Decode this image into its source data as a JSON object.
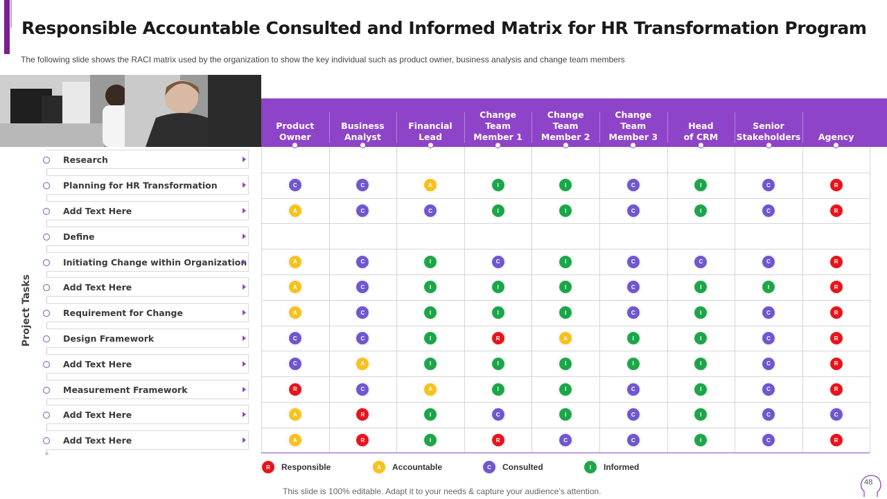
{
  "title": "Responsible Accountable Consulted and Informed Matrix for HR Transformation Program",
  "subtitle": "The following  slide shows the RACI  matrix used by the organization to show the key individual  such as product owner,  business analysis and change team members",
  "columns": [
    "Product\nOwner",
    "Business\nAnalyst",
    "Financial\nLead",
    "Change\nTeam\nMember 1",
    "Change\nTeam\nMember 2",
    "Change\nTeam\nMember 3",
    "Head\nof CRM",
    "Senior\nStakeholders",
    "Agency"
  ],
  "side_label": "Project Tasks",
  "rows": [
    {
      "label": "Research",
      "values": [
        "",
        "",
        "",
        "",
        "",
        "",
        "",
        "",
        ""
      ]
    },
    {
      "label": "Planning for HR Transformation",
      "values": [
        "C",
        "C",
        "A",
        "I",
        "I",
        "C",
        "I",
        "C",
        "R"
      ]
    },
    {
      "label": "Add Text Here",
      "values": [
        "A",
        "C",
        "C",
        "I",
        "I",
        "C",
        "I",
        "C",
        "R"
      ]
    },
    {
      "label": "Define",
      "values": [
        "",
        "",
        "",
        "",
        "",
        "",
        "",
        "",
        ""
      ]
    },
    {
      "label": "Initiating Change within Organization",
      "values": [
        "A",
        "C",
        "I",
        "C",
        "I",
        "C",
        "C",
        "C",
        "R"
      ]
    },
    {
      "label": "Add Text Here",
      "values": [
        "A",
        "C",
        "I",
        "I",
        "I",
        "C",
        "I",
        "I",
        "R"
      ]
    },
    {
      "label": "Requirement for Change",
      "values": [
        "A",
        "C",
        "I",
        "I",
        "I",
        "C",
        "I",
        "C",
        "R"
      ]
    },
    {
      "label": "Design Framework",
      "values": [
        "C",
        "C",
        "I",
        "R",
        "A",
        "I",
        "I",
        "C",
        "R"
      ]
    },
    {
      "label": "Add Text Here",
      "values": [
        "C",
        "A",
        "I",
        "I",
        "I",
        "I",
        "I",
        "C",
        "R"
      ]
    },
    {
      "label": "Measurement Framework",
      "values": [
        "R",
        "C",
        "A",
        "I",
        "I",
        "C",
        "I",
        "C",
        "R"
      ]
    },
    {
      "label": "Add Text Here",
      "values": [
        "A",
        "R",
        "I",
        "C",
        "I",
        "C",
        "I",
        "C",
        "C"
      ]
    },
    {
      "label": "Add Text Here",
      "values": [
        "A",
        "R",
        "I",
        "R",
        "C",
        "C",
        "I",
        "C",
        "R"
      ]
    }
  ],
  "legend": [
    {
      "code": "R",
      "label": "Responsible",
      "color": "#e8141c"
    },
    {
      "code": "A",
      "label": "Accountable",
      "color": "#f6c21b"
    },
    {
      "code": "C",
      "label": "Consulted",
      "color": "#7056cf"
    },
    {
      "code": "I",
      "label": "Informed",
      "color": "#1ca649"
    }
  ],
  "colors": {
    "accent": "#8e44c9",
    "title_bar": "#7b1f8f"
  },
  "footer": "This slide is 100% editable. Adapt it to your needs & capture your audience’s attention.",
  "page_number": "48"
}
